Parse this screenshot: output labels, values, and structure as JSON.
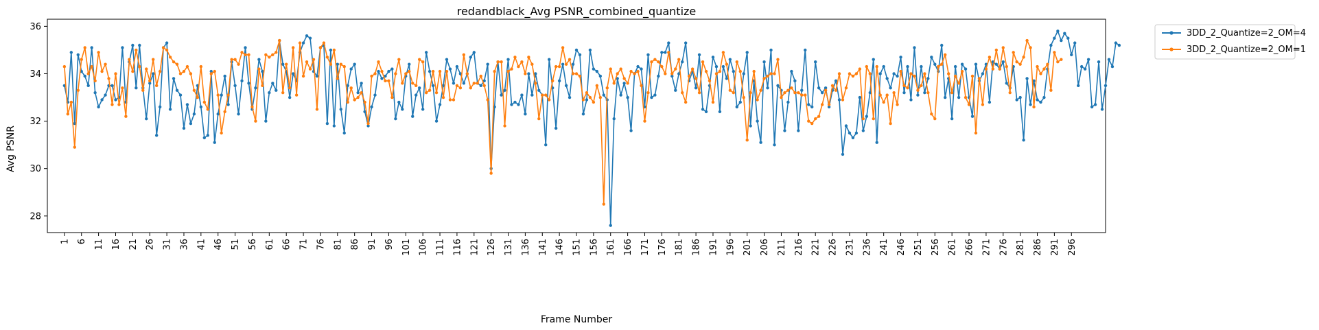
{
  "chart_data": {
    "type": "line",
    "title": "redandblack_Avg PSNR_combined_quantize",
    "xlabel": "Frame Number",
    "ylabel": "Avg PSNR",
    "xlim": [
      -4,
      306
    ],
    "ylim": [
      27.3,
      36.3
    ],
    "yticks": [
      28,
      30,
      32,
      34,
      36
    ],
    "xticks": [
      1,
      6,
      11,
      16,
      21,
      26,
      31,
      36,
      41,
      46,
      51,
      56,
      61,
      66,
      71,
      76,
      81,
      86,
      91,
      96,
      101,
      106,
      111,
      116,
      121,
      126,
      131,
      136,
      141,
      146,
      151,
      156,
      161,
      166,
      171,
      176,
      181,
      186,
      191,
      196,
      201,
      206,
      211,
      216,
      221,
      226,
      231,
      236,
      241,
      246,
      251,
      256,
      261,
      266,
      271,
      276,
      281,
      286,
      291,
      296
    ],
    "x_range": [
      1,
      300
    ],
    "grid": false,
    "legend_position": "outside-top-right",
    "series": [
      {
        "name": "3DD_2_Quantize=2_OM=4",
        "color": "#1f77b4",
        "values": [
          33.5,
          32.8,
          34.9,
          31.9,
          34.8,
          34.1,
          33.9,
          33.5,
          35.1,
          33.2,
          32.6,
          32.9,
          33.1,
          33.5,
          33.5,
          32.9,
          33.0,
          35.1,
          32.8,
          34.5,
          35.2,
          33.4,
          35.2,
          33.4,
          32.1,
          33.6,
          34.0,
          31.4,
          32.6,
          35.1,
          35.3,
          32.5,
          33.8,
          33.3,
          33.1,
          31.7,
          32.7,
          31.9,
          32.3,
          33.5,
          32.6,
          31.3,
          31.4,
          34.1,
          31.1,
          32.3,
          33.1,
          33.9,
          32.7,
          34.5,
          33.5,
          32.3,
          33.7,
          35.1,
          33.6,
          32.5,
          33.4,
          34.6,
          34.1,
          32.0,
          33.2,
          33.6,
          33.3,
          35.4,
          34.4,
          34.1,
          33.0,
          34.0,
          33.7,
          34.9,
          35.3,
          35.6,
          35.5,
          34.1,
          33.9,
          35.1,
          35.2,
          31.9,
          35.0,
          31.8,
          34.4,
          32.5,
          31.5,
          33.5,
          34.2,
          34.4,
          33.2,
          33.6,
          32.4,
          31.8,
          32.6,
          33.1,
          34.1,
          33.8,
          33.9,
          34.1,
          34.2,
          32.1,
          32.8,
          32.5,
          33.9,
          34.4,
          32.2,
          33.1,
          33.4,
          32.5,
          34.9,
          34.1,
          33.5,
          32.0,
          32.7,
          33.5,
          34.6,
          34.2,
          33.6,
          34.3,
          34.0,
          33.6,
          34.0,
          34.7,
          34.9,
          33.6,
          33.5,
          33.7,
          34.4,
          30.0,
          32.6,
          34.5,
          33.1,
          33.3,
          34.6,
          32.7,
          32.8,
          32.7,
          33.1,
          32.3,
          34.0,
          33.1,
          34.0,
          33.3,
          33.1,
          31.0,
          34.6,
          33.4,
          31.7,
          33.7,
          34.4,
          33.5,
          33.0,
          34.4,
          35.0,
          34.8,
          32.3,
          32.9,
          35.0,
          34.2,
          34.1,
          33.9,
          33.1,
          32.9,
          27.6,
          32.1,
          33.8,
          33.1,
          33.6,
          33.0,
          31.6,
          34.0,
          34.3,
          34.2,
          32.6,
          34.8,
          33.0,
          33.1,
          33.9,
          34.9,
          34.9,
          35.3,
          33.9,
          33.3,
          34.0,
          34.5,
          35.3,
          33.7,
          34.1,
          33.4,
          34.8,
          32.5,
          32.4,
          33.5,
          34.7,
          34.3,
          32.4,
          34.3,
          33.8,
          34.6,
          34.1,
          32.6,
          32.8,
          34.0,
          34.9,
          31.8,
          33.7,
          32.0,
          31.1,
          34.5,
          33.4,
          35.0,
          31.0,
          33.5,
          33.3,
          31.6,
          32.8,
          34.1,
          33.7,
          31.6,
          33.3,
          35.0,
          32.7,
          32.6,
          34.5,
          33.4,
          33.2,
          33.4,
          32.6,
          33.3,
          33.7,
          32.9,
          30.6,
          31.8,
          31.5,
          31.3,
          31.5,
          33.0,
          31.6,
          32.2,
          33.2,
          34.6,
          31.1,
          34.0,
          34.3,
          33.8,
          33.4,
          34.0,
          33.9,
          34.7,
          33.2,
          34.3,
          32.9,
          35.1,
          33.1,
          34.3,
          33.2,
          33.8,
          34.7,
          34.4,
          34.1,
          35.2,
          33.0,
          33.8,
          32.1,
          34.3,
          33.0,
          34.4,
          34.2,
          33.0,
          32.2,
          34.4,
          33.7,
          34.0,
          34.4,
          32.8,
          34.5,
          34.4,
          34.2,
          34.5,
          33.6,
          33.4,
          34.3,
          32.9,
          33.0,
          31.2,
          33.8,
          32.7,
          33.7,
          32.9,
          32.8,
          33.0,
          34.2,
          35.2,
          35.5,
          35.8,
          35.4,
          35.7,
          35.5,
          34.8,
          35.3,
          33.5,
          34.3,
          34.2,
          34.6,
          32.6,
          32.7,
          34.5,
          32.5,
          33.5,
          34.6,
          34.3,
          35.3,
          35.2
        ]
      },
      {
        "name": "3DD_2_Quantize=2_OM=1",
        "color": "#ff7f0e",
        "values": [
          34.3,
          32.3,
          32.8,
          30.9,
          33.3,
          34.6,
          35.1,
          34.0,
          34.3,
          33.7,
          34.9,
          34.1,
          34.4,
          33.8,
          32.7,
          34.0,
          32.7,
          33.4,
          32.2,
          34.6,
          34.1,
          35.0,
          34.3,
          33.3,
          34.2,
          33.7,
          34.6,
          33.5,
          34.1,
          35.1,
          35.0,
          34.7,
          34.5,
          34.4,
          34.0,
          34.1,
          34.3,
          34.0,
          33.3,
          33.0,
          34.3,
          32.8,
          32.5,
          34.0,
          34.1,
          33.1,
          31.5,
          32.4,
          33.1,
          34.6,
          34.6,
          34.4,
          34.9,
          34.8,
          34.8,
          32.6,
          32.0,
          34.2,
          33.5,
          34.8,
          34.7,
          34.8,
          34.9,
          35.4,
          33.2,
          34.4,
          33.4,
          35.1,
          33.1,
          35.3,
          33.9,
          34.5,
          34.2,
          34.6,
          32.5,
          35.1,
          35.3,
          34.7,
          34.4,
          35.0,
          33.8,
          34.4,
          34.3,
          32.8,
          33.4,
          32.9,
          33.0,
          33.2,
          32.8,
          31.9,
          33.9,
          34.0,
          34.5,
          34.1,
          33.7,
          33.7,
          33.0,
          34.0,
          34.6,
          33.6,
          34.0,
          34.1,
          33.6,
          33.5,
          34.6,
          34.5,
          33.2,
          33.3,
          34.1,
          33.2,
          34.1,
          33.0,
          34.1,
          32.9,
          32.9,
          33.5,
          33.4,
          34.8,
          34.0,
          33.4,
          33.6,
          33.6,
          33.9,
          33.5,
          32.9,
          29.8,
          34.1,
          34.5,
          34.5,
          31.8,
          34.1,
          34.2,
          34.7,
          34.3,
          34.5,
          34.0,
          34.7,
          34.4,
          33.6,
          32.1,
          33.1,
          33.1,
          32.9,
          33.7,
          34.3,
          34.3,
          35.1,
          34.4,
          34.6,
          34.0,
          34.0,
          33.9,
          32.9,
          33.2,
          33.0,
          32.8,
          33.5,
          33.0,
          28.5,
          33.4,
          34.2,
          33.6,
          34.0,
          34.2,
          33.8,
          33.6,
          34.1,
          34.0,
          34.1,
          33.5,
          32.0,
          33.2,
          34.5,
          34.6,
          34.5,
          34.3,
          34.0,
          34.9,
          34.0,
          34.2,
          34.6,
          33.2,
          32.8,
          33.9,
          34.2,
          33.8,
          33.2,
          34.5,
          34.1,
          33.7,
          32.8,
          34.0,
          34.1,
          34.9,
          34.4,
          33.3,
          33.2,
          34.5,
          34.1,
          33.0,
          31.2,
          33.2,
          34.1,
          32.9,
          33.3,
          33.8,
          33.9,
          34.0,
          34.0,
          34.6,
          33.0,
          33.2,
          33.3,
          33.4,
          33.2,
          33.2,
          33.1,
          33.1,
          32.0,
          31.9,
          32.1,
          32.2,
          32.7,
          33.3,
          32.7,
          33.5,
          33.3,
          34.0,
          32.9,
          33.4,
          34.0,
          33.9,
          34.0,
          34.2,
          32.1,
          34.3,
          34.0,
          32.1,
          34.3,
          33.1,
          32.8,
          33.1,
          31.9,
          33.2,
          32.7,
          34.1,
          33.5,
          33.4,
          34.0,
          33.9,
          33.3,
          33.5,
          34.0,
          33.2,
          32.3,
          32.1,
          34.3,
          34.4,
          34.8,
          34.0,
          33.2,
          33.9,
          33.6,
          34.1,
          33.0,
          32.7,
          33.9,
          31.5,
          33.8,
          32.7,
          34.2,
          34.7,
          34.2,
          35.0,
          34.2,
          35.1,
          34.3,
          33.2,
          34.9,
          34.5,
          34.4,
          34.7,
          35.4,
          35.1,
          32.6,
          34.3,
          34.0,
          34.2,
          34.4,
          33.3,
          34.9,
          34.5,
          34.6
        ]
      }
    ]
  }
}
